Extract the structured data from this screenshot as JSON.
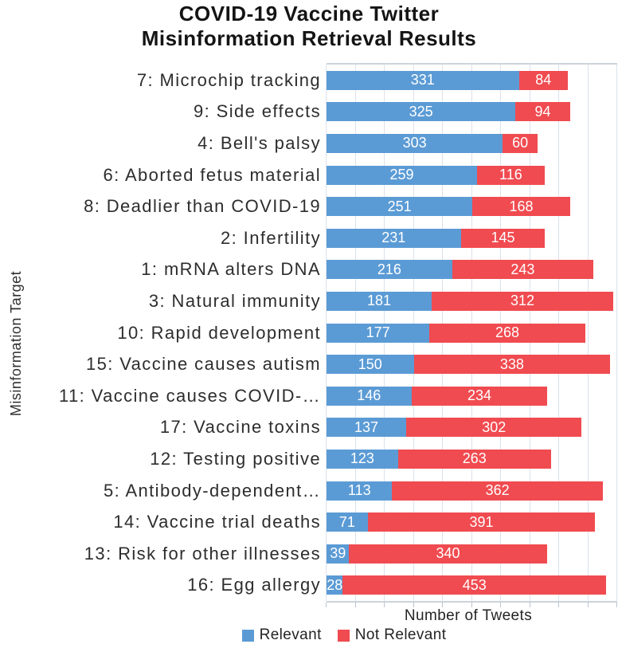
{
  "title": {
    "line1": "COVID-19 Vaccine Twitter",
    "line2": "Misinformation Retrieval Results"
  },
  "axes": {
    "y_label": "Misinformation Target",
    "x_label": "Number of Tweets"
  },
  "colors": {
    "relevant_blue": "#5b9bd5",
    "not_relevant_red": "#f04b50",
    "gridline": "#dbe2ec",
    "axis_line": "#ccd3da",
    "bar_value_text": "#ffffff"
  },
  "chart_data": {
    "type": "bar",
    "orientation": "horizontal",
    "stacked": true,
    "title": "COVID-19 Vaccine Twitter Misinformation Retrieval Results",
    "xlabel": "Number of Tweets",
    "ylabel": "Misinformation Target",
    "xlim": [
      0,
      500
    ],
    "gridline_step": 50,
    "grid": true,
    "legend_position": "bottom",
    "categories": [
      "7: Microchip tracking",
      "9: Side effects",
      "4: Bell's palsy",
      "6: Aborted fetus material",
      "8: Deadlier than COVID-19",
      "2: Infertility",
      "1: mRNA alters DNA",
      "3: Natural immunity",
      "10: Rapid development",
      "15: Vaccine causes autism",
      "11: Vaccine causes COVID-…",
      "17: Vaccine toxins",
      "12: Testing positive",
      "5: Antibody-dependent…",
      "14: Vaccine trial deaths",
      "13: Risk for other illnesses",
      "16: Egg allergy"
    ],
    "series": [
      {
        "name": "Relevant",
        "color": "#5b9bd5",
        "values": [
          331,
          325,
          303,
          259,
          251,
          231,
          216,
          181,
          177,
          150,
          146,
          137,
          123,
          113,
          71,
          39,
          28
        ]
      },
      {
        "name": "Not Relevant",
        "color": "#f04b50",
        "values": [
          84,
          94,
          60,
          116,
          168,
          145,
          243,
          312,
          268,
          338,
          234,
          302,
          263,
          362,
          391,
          340,
          453
        ]
      }
    ]
  }
}
